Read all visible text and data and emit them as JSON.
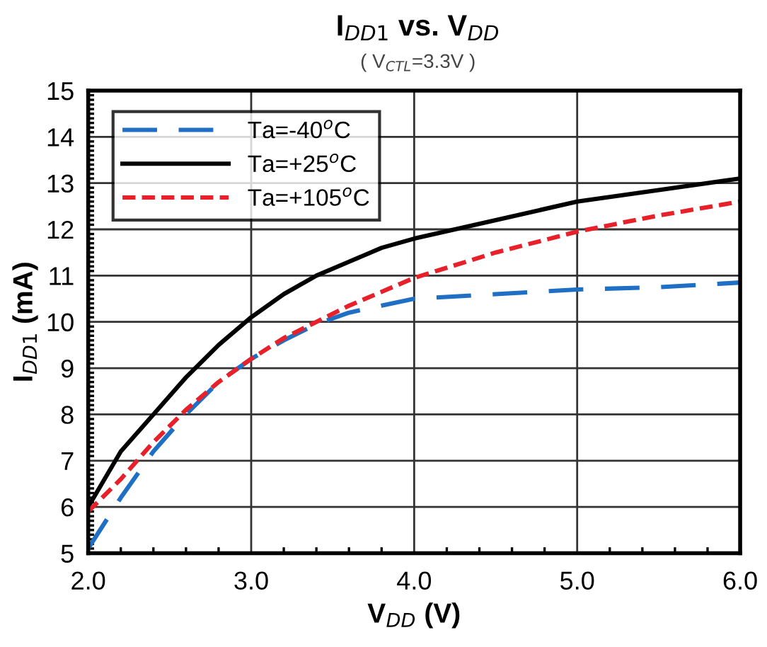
{
  "chart_data": {
    "type": "line",
    "title": "I$_{DD1}$ vs. V$_{DD}$",
    "subtitle": "( V$_{CTL}$=3.3V )",
    "xlabel": "V$_{DD}$ (V)",
    "ylabel": "I$_{DD1}$ (mA)",
    "x": [
      2.0,
      2.2,
      2.4,
      2.6,
      2.8,
      3.0,
      3.2,
      3.4,
      3.6,
      3.8,
      4.0,
      4.5,
      5.0,
      5.5,
      6.0
    ],
    "series": [
      {
        "name": "Ta=-40$^{o}$C",
        "color": "#1f6fc4",
        "line_style": "dashed",
        "values": [
          5.1,
          6.2,
          7.2,
          8.0,
          8.7,
          9.2,
          9.6,
          9.95,
          10.2,
          10.35,
          10.5,
          10.6,
          10.7,
          10.75,
          10.85
        ]
      },
      {
        "name": "Ta=+25$^{o}$C",
        "color": "#000000",
        "line_style": "solid",
        "values": [
          6.0,
          7.2,
          8.0,
          8.8,
          9.5,
          10.1,
          10.6,
          11.0,
          11.3,
          11.6,
          11.8,
          12.2,
          12.6,
          12.85,
          13.1
        ]
      },
      {
        "name": "Ta=+105$^{o}$C",
        "color": "#e8202a",
        "line_style": "dotted",
        "values": [
          5.9,
          6.6,
          7.4,
          8.1,
          8.7,
          9.2,
          9.65,
          10.0,
          10.35,
          10.65,
          10.95,
          11.5,
          11.95,
          12.3,
          12.6
        ]
      }
    ],
    "xlim": [
      2,
      6
    ],
    "ylim": [
      5,
      15
    ],
    "xticks": [
      {
        "value": 2,
        "label": "2.0"
      },
      {
        "value": 3,
        "label": "3.0"
      },
      {
        "value": 4,
        "label": "4.0"
      },
      {
        "value": 5,
        "label": "5.0"
      },
      {
        "value": 6,
        "label": "6.0"
      }
    ],
    "yticks": [
      5,
      6,
      7,
      8,
      9,
      10,
      11,
      12,
      13,
      14,
      15
    ],
    "grid": true,
    "legend": "top left",
    "marker": "none"
  }
}
